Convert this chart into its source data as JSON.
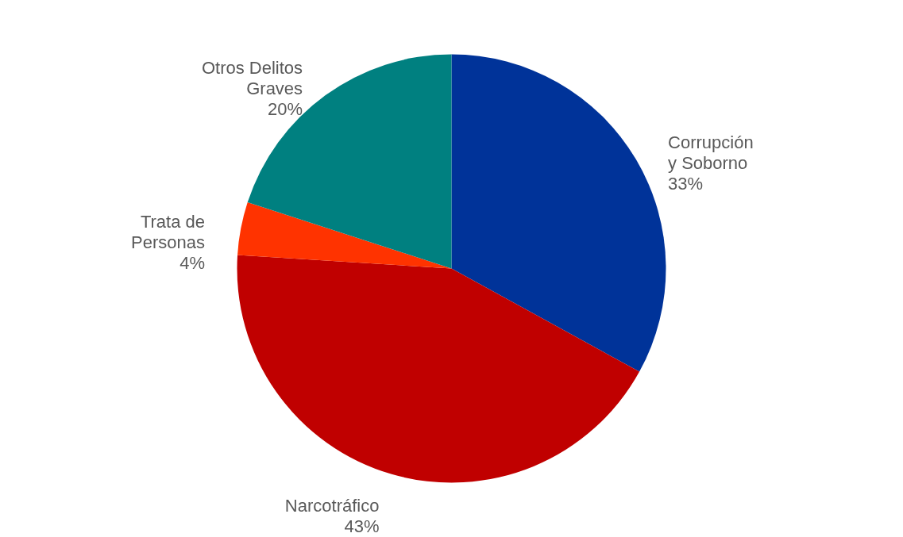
{
  "chart_data": {
    "type": "pie",
    "categories": [
      "Corrupción y Soborno",
      "Narcotráfico",
      "Trata de Personas",
      "Otros Delitos Graves"
    ],
    "values": [
      33,
      43,
      4,
      20
    ],
    "colors": [
      "#003399",
      "#c00000",
      "#ff3300",
      "#008080"
    ],
    "value_labels": [
      "33%",
      "43%",
      "4%",
      "20%"
    ]
  }
}
